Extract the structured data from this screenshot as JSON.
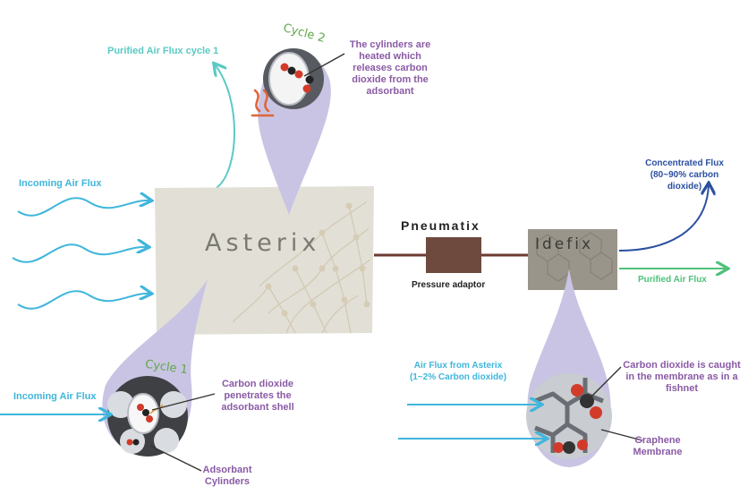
{
  "units": {
    "asterix": "Asterix",
    "pneumatix": "Pneumatix",
    "idefix": "Idefix",
    "pressure_adaptor": "Pressure adaptor"
  },
  "cycles": {
    "cycle1": "Cycle 1",
    "cycle2": "Cycle 2"
  },
  "flows": {
    "purified_cycle1": "Purified Air Flux cycle 1",
    "incoming_main": "Incoming Air Flux",
    "incoming_zoom": "Incoming Air Flux",
    "concentrated": [
      "Concentrated Flux",
      "(80~90% carbon",
      "dioxide)"
    ],
    "purified": "Purified Air Flux",
    "from_asterix": [
      "Air Flux from Asterix",
      "(1~2% Carbon dioxide)"
    ]
  },
  "notes": {
    "heated": [
      "The cylinders are",
      "heated which",
      "releases carbon",
      "dioxide from the",
      "adsorbant"
    ],
    "penetrates": [
      "Carbon dioxide",
      "penetrates the",
      "adsorbant shell"
    ],
    "cylinders": [
      "Adsorbant",
      "Cylinders"
    ],
    "caught": [
      "Carbon dioxide is caught",
      "in the membrane as in a",
      "fishnet"
    ],
    "graphene": [
      "Graphene",
      "Membrane"
    ]
  },
  "colors": {
    "teal": "#5cc9c3",
    "blue": "#3fb6dc",
    "purple": "#8a5aa5",
    "navy": "#2b4fa0",
    "green": "#4fc17a",
    "lavender": "#c9c4e3",
    "pipe": "#6b3b32",
    "heat": "#e0643a"
  }
}
